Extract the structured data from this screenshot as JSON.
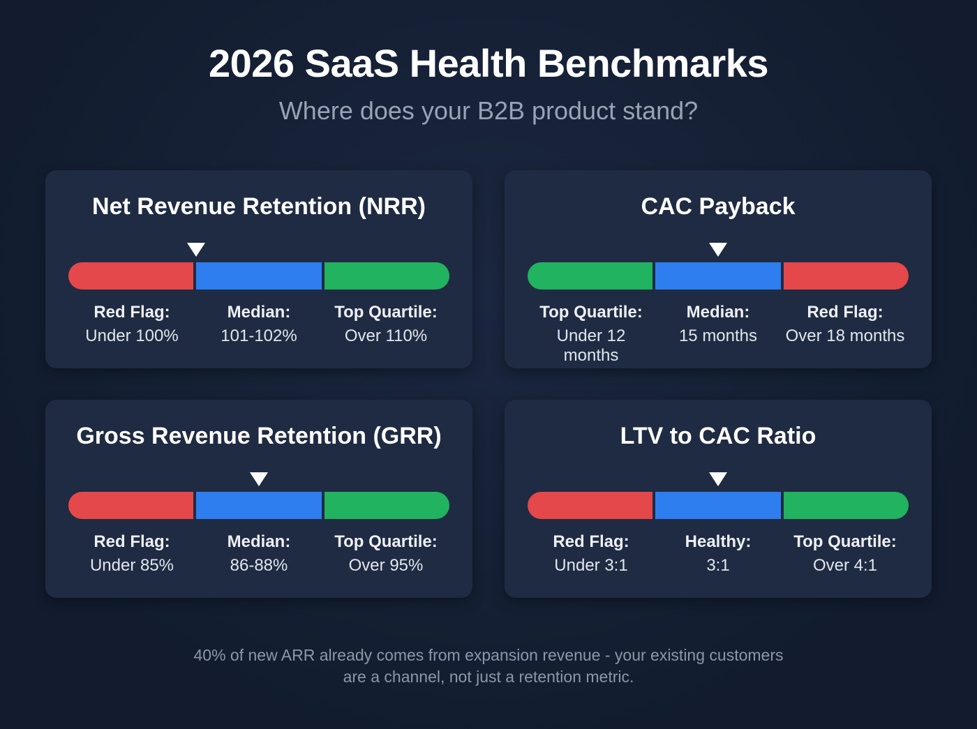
{
  "header": {
    "title": "2026 SaaS Health Benchmarks",
    "subtitle": "Where does your B2B product stand?"
  },
  "colors": {
    "red": "#e5484a",
    "blue": "#2f7ef0",
    "green": "#21b35f",
    "card": "#1f2b42",
    "background": "#141f33"
  },
  "cards": [
    {
      "title": "Net Revenue Retention (NRR)",
      "marker_position": 0.335,
      "segments": [
        {
          "color": "#e5484a",
          "label": "Red Flag:",
          "value": "Under 100%"
        },
        {
          "color": "#2f7ef0",
          "label": "Median:",
          "value": "101-102%"
        },
        {
          "color": "#21b35f",
          "label": "Top Quartile:",
          "value": "Over 110%"
        }
      ]
    },
    {
      "title": "CAC Payback",
      "marker_position": 0.5,
      "segments": [
        {
          "color": "#21b35f",
          "label": "Top Quartile:",
          "value": "Under 12 months"
        },
        {
          "color": "#2f7ef0",
          "label": "Median:",
          "value": "15 months"
        },
        {
          "color": "#e5484a",
          "label": "Red Flag:",
          "value": "Over 18 months"
        }
      ]
    },
    {
      "title": "Gross Revenue Retention (GRR)",
      "marker_position": 0.5,
      "segments": [
        {
          "color": "#e5484a",
          "label": "Red Flag:",
          "value": "Under 85%"
        },
        {
          "color": "#2f7ef0",
          "label": "Median:",
          "value": "86-88%"
        },
        {
          "color": "#21b35f",
          "label": "Top Quartile:",
          "value": "Over 95%"
        }
      ]
    },
    {
      "title": "LTV to CAC Ratio",
      "marker_position": 0.5,
      "segments": [
        {
          "color": "#e5484a",
          "label": "Red Flag:",
          "value": "Under 3:1"
        },
        {
          "color": "#2f7ef0",
          "label": "Healthy:",
          "value": "3:1"
        },
        {
          "color": "#21b35f",
          "label": "Top Quartile:",
          "value": "Over 4:1"
        }
      ]
    }
  ],
  "footer": {
    "line1": "40% of new ARR already comes from expansion revenue - your existing customers",
    "line2": "are a channel, not just a retention metric."
  }
}
